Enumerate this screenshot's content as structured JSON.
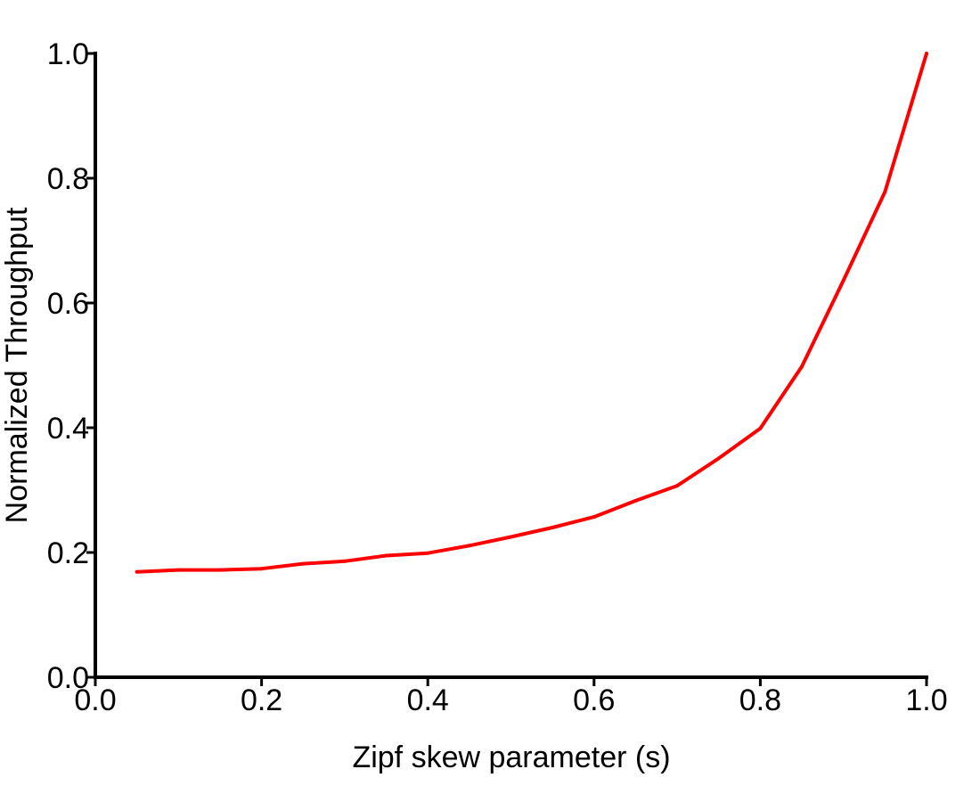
{
  "chart_data": {
    "type": "line",
    "title": "",
    "xlabel": "Zipf skew parameter (s)",
    "ylabel": "Normalized Throughput",
    "xlim": [
      0.0,
      1.0
    ],
    "ylim": [
      0.0,
      1.0
    ],
    "xticks": [
      "0.0",
      "0.2",
      "0.4",
      "0.6",
      "0.8",
      "1.0"
    ],
    "yticks": [
      "0.0",
      "0.2",
      "0.4",
      "0.6",
      "0.8",
      "1.0"
    ],
    "grid": false,
    "legend": "none",
    "series": [
      {
        "color": "#ff0000",
        "x": [
          0.05,
          0.1,
          0.15,
          0.2,
          0.25,
          0.3,
          0.35,
          0.4,
          0.45,
          0.5,
          0.55,
          0.6,
          0.65,
          0.7,
          0.75,
          0.8,
          0.85,
          0.9,
          0.95,
          1.0
        ],
        "y": [
          0.169,
          0.172,
          0.172,
          0.174,
          0.182,
          0.186,
          0.195,
          0.199,
          0.211,
          0.225,
          0.24,
          0.257,
          0.283,
          0.307,
          0.351,
          0.399,
          0.498,
          0.636,
          0.778,
          1.0
        ]
      }
    ]
  }
}
